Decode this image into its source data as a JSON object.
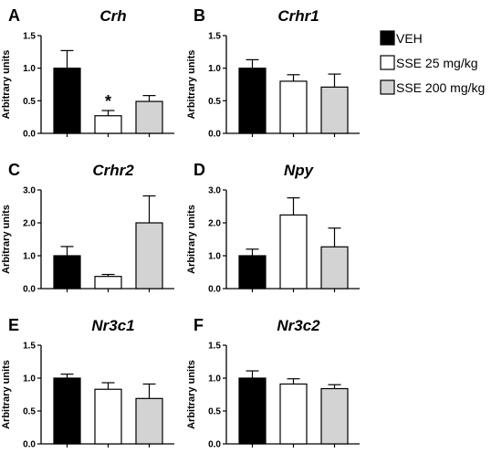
{
  "legend": [
    {
      "label": "VEH",
      "color": "#000000"
    },
    {
      "label": "SSE 25 mg/kg",
      "color": "#ffffff"
    },
    {
      "label": "SSE 200 mg/kg",
      "color": "#d3d3d3"
    }
  ],
  "chart_data": [
    {
      "type": "bar",
      "panel": "A",
      "title": "Crh",
      "ylabel": "Arbitrary units",
      "ylim": [
        0,
        1.5
      ],
      "yticks": [
        "0.0",
        "0.5",
        "1.0",
        "1.5"
      ],
      "ytick_values": [
        0,
        0.5,
        1.0,
        1.5
      ],
      "categories": [
        "VEH",
        "SSE 25 mg/kg",
        "SSE 200 mg/kg"
      ],
      "values": [
        1.0,
        0.27,
        0.49
      ],
      "errors": [
        0.27,
        0.08,
        0.09
      ],
      "annotations": [
        {
          "category": "SSE 25 mg/kg",
          "text": "*"
        }
      ]
    },
    {
      "type": "bar",
      "panel": "B",
      "title": "Crhr1",
      "ylabel": "Arbitrary units",
      "ylim": [
        0,
        1.5
      ],
      "yticks": [
        "0.0",
        "0.5",
        "1.0",
        "1.5"
      ],
      "ytick_values": [
        0,
        0.5,
        1.0,
        1.5
      ],
      "categories": [
        "VEH",
        "SSE 25 mg/kg",
        "SSE 200 mg/kg"
      ],
      "values": [
        1.0,
        0.8,
        0.71
      ],
      "errors": [
        0.13,
        0.1,
        0.2
      ],
      "annotations": []
    },
    {
      "type": "bar",
      "panel": "C",
      "title": "Crhr2",
      "ylabel": "Arbitrary units",
      "ylim": [
        0,
        3.0
      ],
      "yticks": [
        "0.0",
        "1.0",
        "2.0",
        "3.0"
      ],
      "ytick_values": [
        0,
        1.0,
        2.0,
        3.0
      ],
      "categories": [
        "VEH",
        "SSE 25 mg/kg",
        "SSE 200 mg/kg"
      ],
      "values": [
        1.0,
        0.37,
        2.0
      ],
      "errors": [
        0.28,
        0.06,
        0.82
      ],
      "annotations": []
    },
    {
      "type": "bar",
      "panel": "D",
      "title": "Npy",
      "ylabel": "Arbitrary units",
      "ylim": [
        0,
        3.0
      ],
      "yticks": [
        "0.0",
        "1.0",
        "2.0",
        "3.0"
      ],
      "ytick_values": [
        0,
        1.0,
        2.0,
        3.0
      ],
      "categories": [
        "VEH",
        "SSE 25 mg/kg",
        "SSE 200 mg/kg"
      ],
      "values": [
        1.0,
        2.24,
        1.27
      ],
      "errors": [
        0.2,
        0.52,
        0.57
      ],
      "annotations": []
    },
    {
      "type": "bar",
      "panel": "E",
      "title": "Nr3c1",
      "ylabel": "Arbitrary units",
      "ylim": [
        0,
        1.5
      ],
      "yticks": [
        "0.0",
        "0.5",
        "1.0",
        "1.5"
      ],
      "ytick_values": [
        0,
        0.5,
        1.0,
        1.5
      ],
      "categories": [
        "VEH",
        "SSE 25 mg/kg",
        "SSE 200 mg/kg"
      ],
      "values": [
        1.0,
        0.83,
        0.69
      ],
      "errors": [
        0.06,
        0.1,
        0.22
      ],
      "annotations": []
    },
    {
      "type": "bar",
      "panel": "F",
      "title": "Nr3c2",
      "ylabel": "Arbitrary units",
      "ylim": [
        0,
        1.5
      ],
      "yticks": [
        "0.0",
        "0.5",
        "1.0",
        "1.5"
      ],
      "ytick_values": [
        0,
        0.5,
        1.0,
        1.5
      ],
      "categories": [
        "VEH",
        "SSE 25 mg/kg",
        "SSE 200 mg/kg"
      ],
      "values": [
        1.0,
        0.91,
        0.84
      ],
      "errors": [
        0.11,
        0.08,
        0.06
      ],
      "annotations": []
    }
  ]
}
